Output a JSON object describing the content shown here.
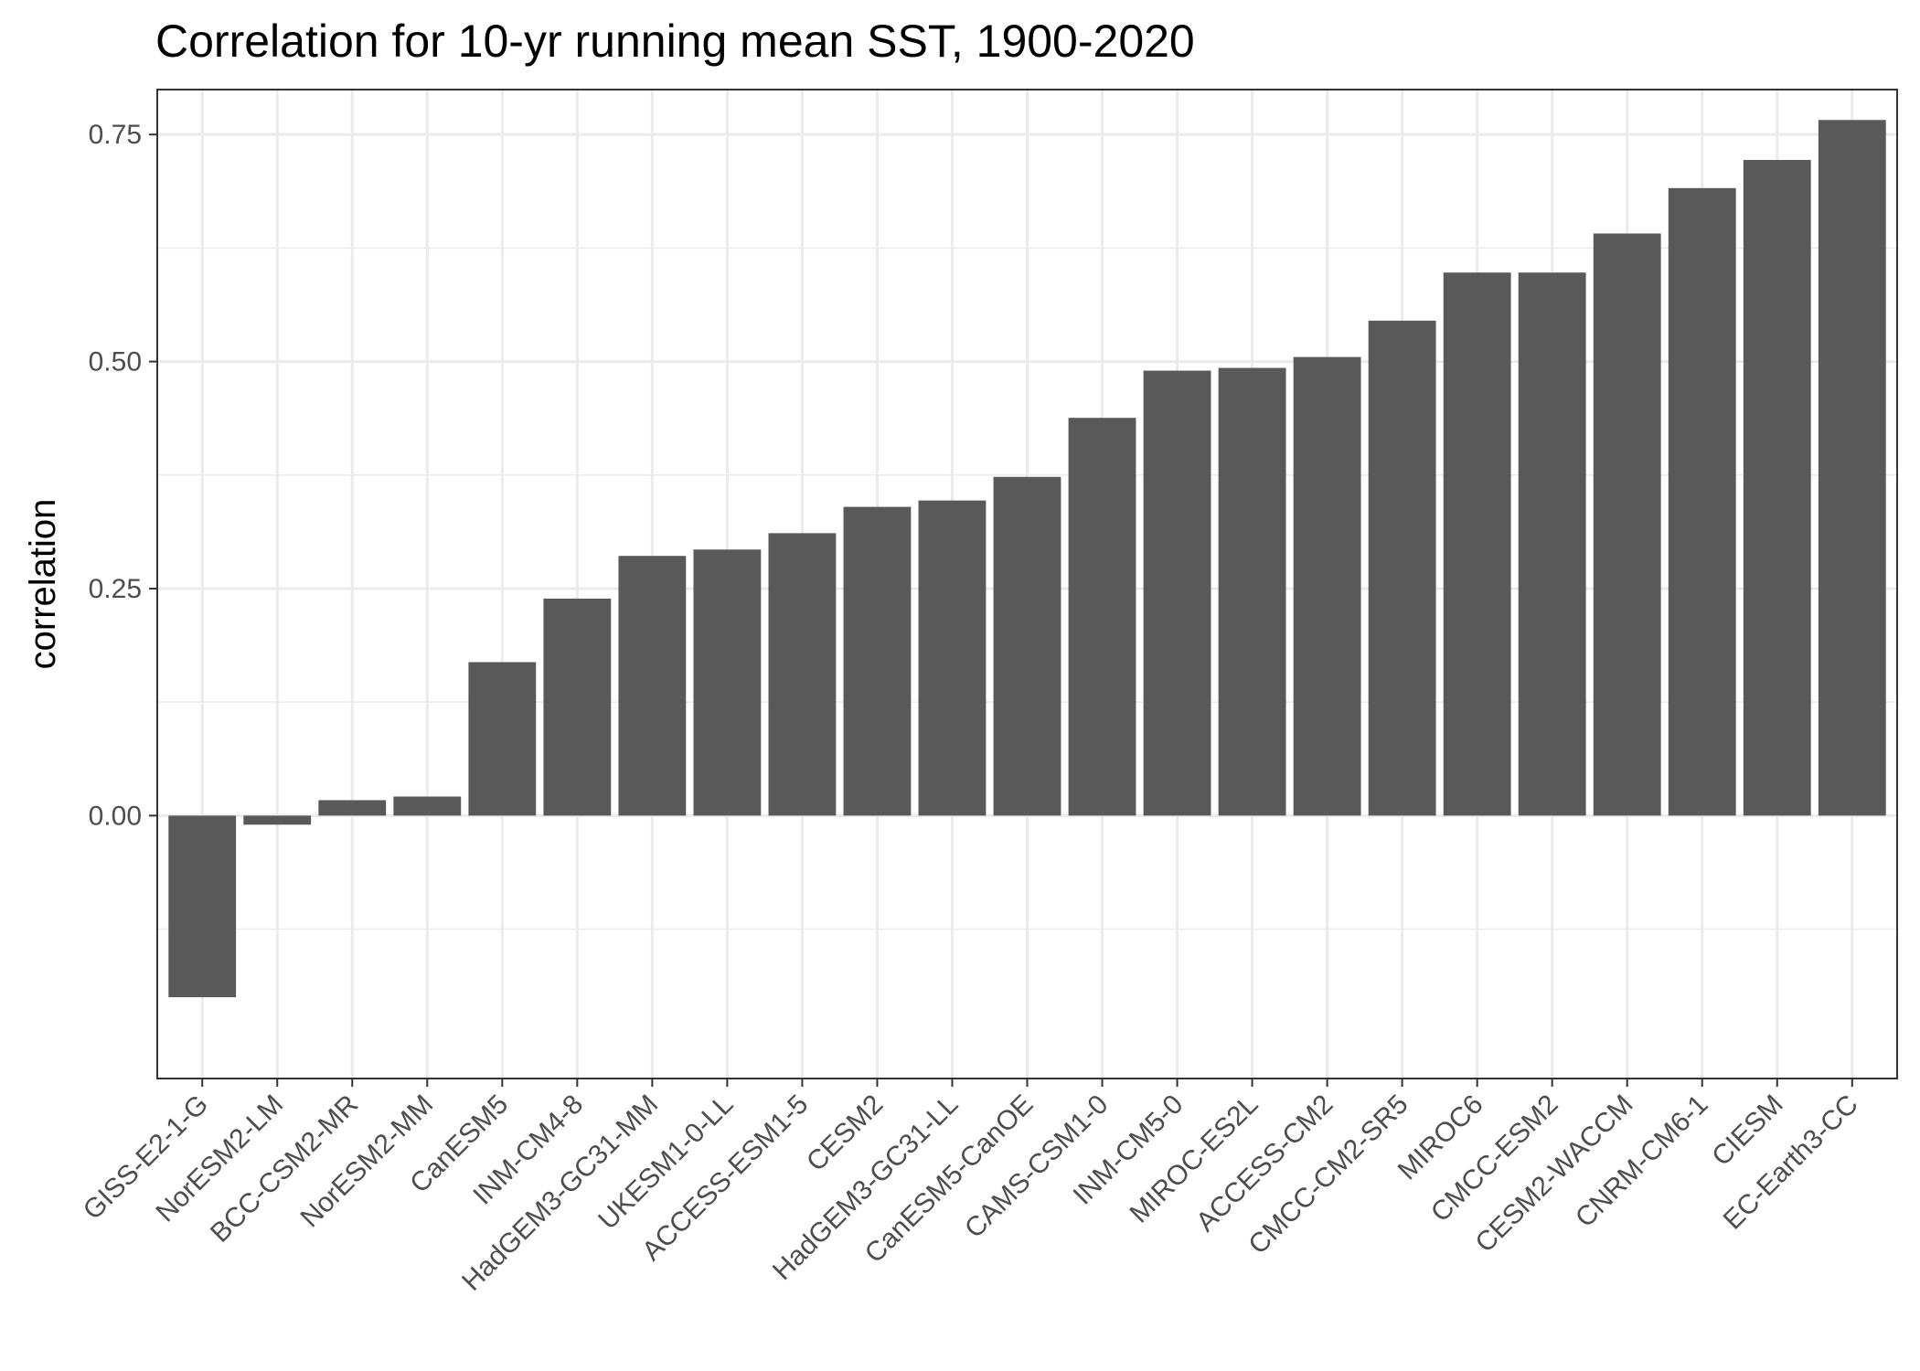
{
  "chart_data": {
    "type": "bar",
    "title": "Correlation for 10-yr running mean SST, 1900-2020",
    "xlabel": "",
    "ylabel": "correlation",
    "ylim": [
      -0.24,
      0.75
    ],
    "yticks": [
      0.0,
      0.25,
      0.5,
      0.75
    ],
    "ytick_labels": [
      "0.00",
      "0.25",
      "0.50",
      "0.75"
    ],
    "grid": true,
    "categories": [
      "GISS-E2-1-G",
      "NorESM2-LM",
      "BCC-CSM2-MR",
      "NorESM2-MM",
      "CanESM5",
      "INM-CM4-8",
      "HadGEM3-GC31-MM",
      "UKESM1-0-LL",
      "ACCESS-ESM1-5",
      "CESM2",
      "HadGEM3-GC31-LL",
      "CanESM5-CanOE",
      "CAMS-CSM1-0",
      "INM-CM5-0",
      "MIROC-ES2L",
      "ACCESS-CM2",
      "CMCC-CM2-SR5",
      "MIROC6",
      "CMCC-ESM2",
      "CESM2-WACCM",
      "CNRM-CM6-1",
      "CIESM",
      "EC-Earth3-CC"
    ],
    "values": [
      -0.2,
      -0.01,
      0.017,
      0.021,
      0.169,
      0.239,
      0.286,
      0.293,
      0.311,
      0.34,
      0.347,
      0.373,
      0.438,
      0.49,
      0.493,
      0.505,
      0.545,
      0.598,
      0.598,
      0.641,
      0.691,
      0.722,
      0.766
    ],
    "bar_color": "#595959",
    "panel_border_color": "#333333",
    "grid_color": "#ebebeb"
  }
}
